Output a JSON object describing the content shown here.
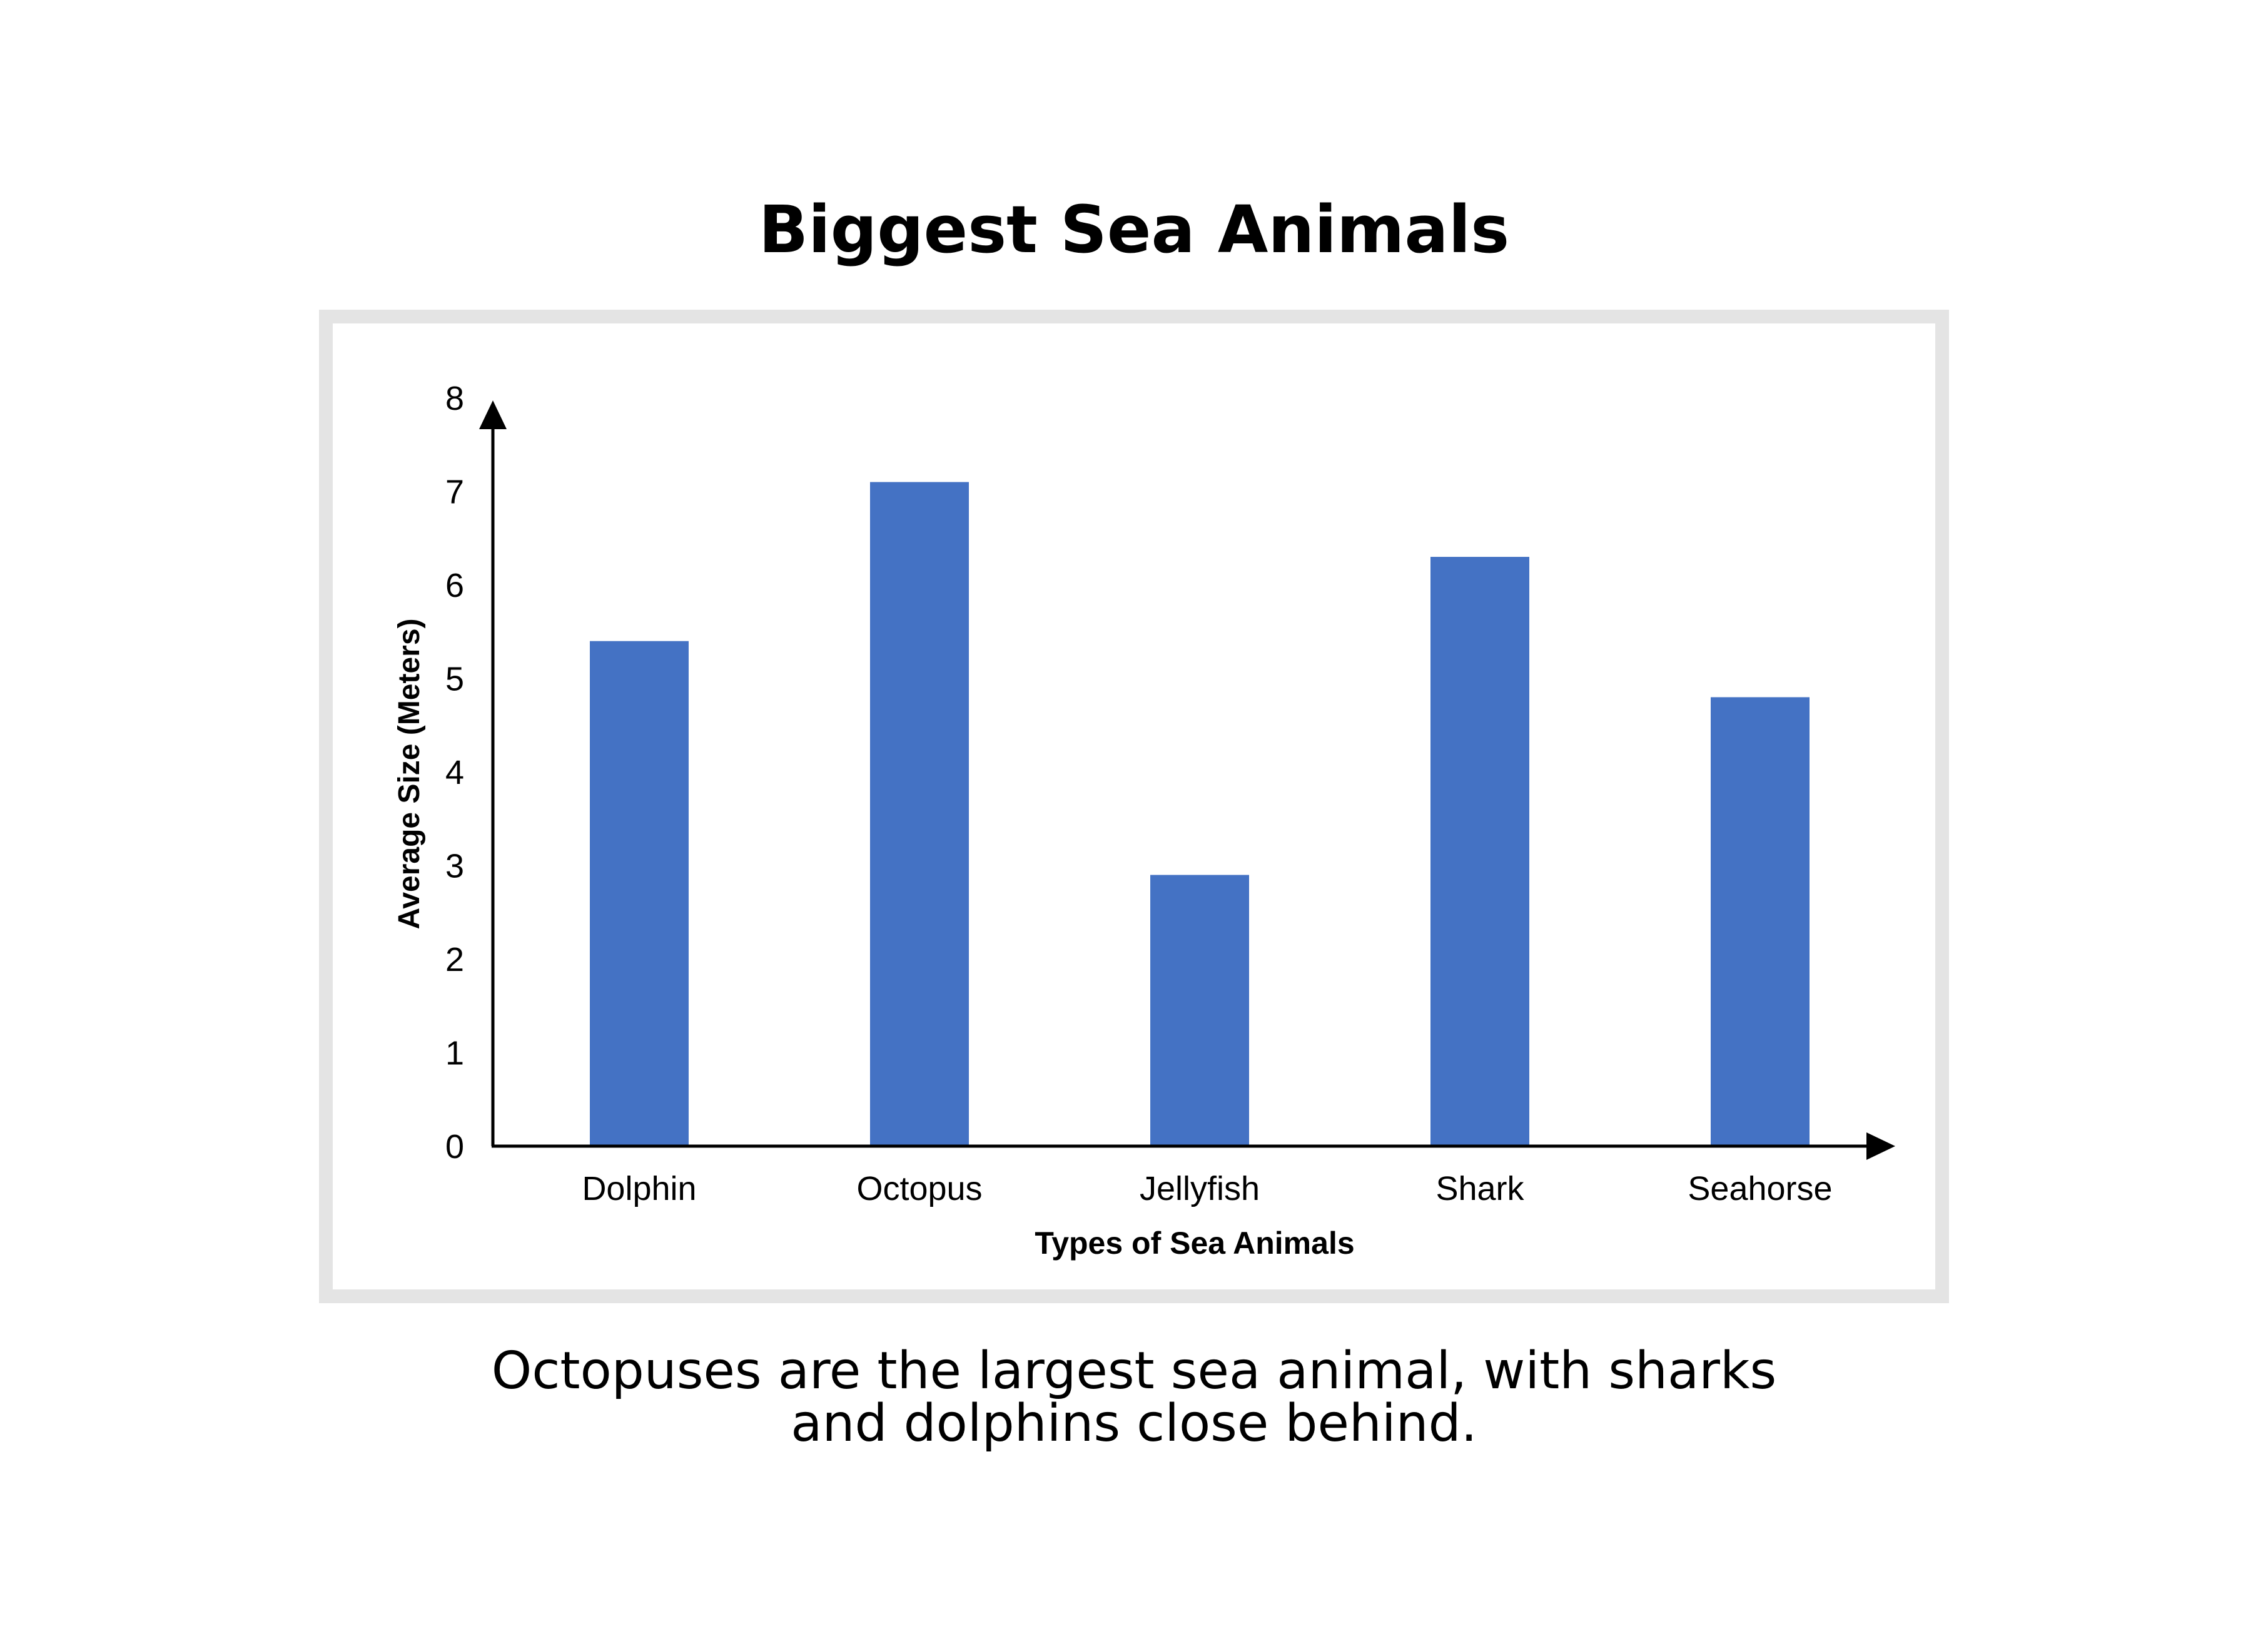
{
  "chart_data": {
    "type": "bar",
    "title": "Biggest Sea Animals",
    "xlabel": "Types of Sea Animals",
    "ylabel": "Average Size (Meters)",
    "categories": [
      "Dolphin",
      "Octopus",
      "Jellyfish",
      "Shark",
      "Seahorse"
    ],
    "values": [
      5.4,
      7.1,
      2.9,
      6.3,
      4.8
    ],
    "ylim": [
      0,
      8
    ],
    "yticks": [
      "0",
      "1",
      "2",
      "3",
      "4",
      "5",
      "6",
      "7",
      "8"
    ],
    "grid": false,
    "legend": "none",
    "bar_color": "#4472c4"
  },
  "caption": {
    "line1": "Octopuses are the largest sea animal, with sharks",
    "line2": "and dolphins close behind."
  },
  "colors": {
    "frame": "#e4e4e4",
    "axis": "#000000",
    "text": "#000000"
  }
}
